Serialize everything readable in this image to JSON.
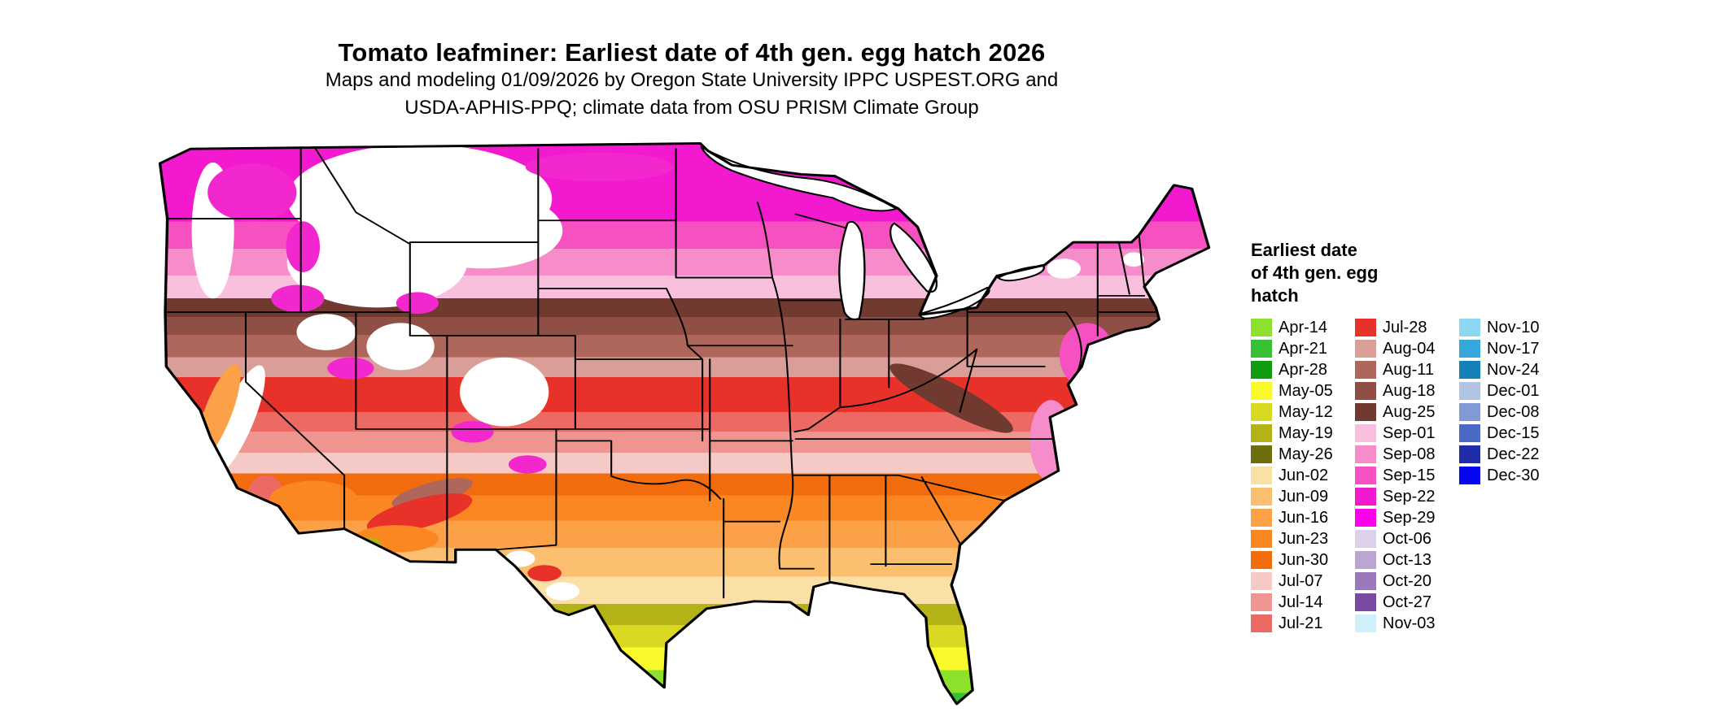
{
  "header": {
    "title": "Tomato leafminer: Earliest date of 4th gen. egg hatch 2026",
    "subtitle_line1": "Maps and modeling 01/09/2026 by Oregon State University IPPC USPEST.ORG and",
    "subtitle_line2": "USDA-APHIS-PPQ; climate data from OSU PRISM Climate Group"
  },
  "legend": {
    "title": "Earliest date\nof 4th gen. egg\nhatch",
    "columns": [
      [
        {
          "label": "Apr-14",
          "color": "#8DE12D"
        },
        {
          "label": "Apr-21",
          "color": "#35C133"
        },
        {
          "label": "Apr-28",
          "color": "#109C10"
        },
        {
          "label": "May-05",
          "color": "#F9F92B"
        },
        {
          "label": "May-12",
          "color": "#D9D921"
        },
        {
          "label": "May-19",
          "color": "#B3B318"
        },
        {
          "label": "May-26",
          "color": "#6E6E0C"
        },
        {
          "label": "Jun-02",
          "color": "#FADFA6"
        },
        {
          "label": "Jun-09",
          "color": "#FCBF70"
        },
        {
          "label": "Jun-16",
          "color": "#FDA148"
        },
        {
          "label": "Jun-23",
          "color": "#FB8723"
        },
        {
          "label": "Jun-30",
          "color": "#F26B0D"
        },
        {
          "label": "Jul-07",
          "color": "#F5C9C5"
        },
        {
          "label": "Jul-14",
          "color": "#EF9590"
        },
        {
          "label": "Jul-21",
          "color": "#EB6A64"
        }
      ],
      [
        {
          "label": "Jul-28",
          "color": "#E83229"
        },
        {
          "label": "Aug-04",
          "color": "#D99E97"
        },
        {
          "label": "Aug-11",
          "color": "#AF675C"
        },
        {
          "label": "Aug-18",
          "color": "#8F4F45"
        },
        {
          "label": "Aug-25",
          "color": "#703A30"
        },
        {
          "label": "Sep-01",
          "color": "#F8C0DD"
        },
        {
          "label": "Sep-08",
          "color": "#F78CCA"
        },
        {
          "label": "Sep-15",
          "color": "#F750C1"
        },
        {
          "label": "Sep-22",
          "color": "#F219CF"
        },
        {
          "label": "Sep-29",
          "color": "#FB00EC"
        },
        {
          "label": "Oct-06",
          "color": "#DCD1E9"
        },
        {
          "label": "Oct-13",
          "color": "#BCA5D2"
        },
        {
          "label": "Oct-20",
          "color": "#9B78BA"
        },
        {
          "label": "Oct-27",
          "color": "#7A4AA2"
        },
        {
          "label": "Nov-03",
          "color": "#CFEFFB"
        }
      ],
      [
        {
          "label": "Nov-10",
          "color": "#8ED7F3"
        },
        {
          "label": "Nov-17",
          "color": "#36A7DA"
        },
        {
          "label": "Nov-24",
          "color": "#1380B8"
        },
        {
          "label": "Dec-01",
          "color": "#B0C4E3"
        },
        {
          "label": "Dec-08",
          "color": "#7F9AD5"
        },
        {
          "label": "Dec-15",
          "color": "#4A68C6"
        },
        {
          "label": "Dec-22",
          "color": "#1F2DA8"
        },
        {
          "label": "Dec-30",
          "color": "#0505EE"
        }
      ]
    ]
  },
  "map": {
    "palette": {
      "white": "#FFFFFF",
      "magenta": "#F327CE",
      "hot_pink": "#F750C1",
      "pink": "#F78CCA",
      "red": "#E83229",
      "coral": "#EB6A64",
      "brown": "#AF675C",
      "dark_brown": "#703A30",
      "orange": "#FB8723",
      "light_orange": "#FDA148",
      "olive": "#B3B318"
    },
    "bands": [
      {
        "color": "#F219CF",
        "from": 0,
        "to": 0.141
      },
      {
        "color": "#F750C1",
        "from": 0.141,
        "to": 0.188
      },
      {
        "color": "#F78CCA",
        "from": 0.188,
        "to": 0.234
      },
      {
        "color": "#F8C0DD",
        "from": 0.234,
        "to": 0.273
      },
      {
        "color": "#703A30",
        "from": 0.273,
        "to": 0.305
      },
      {
        "color": "#8F4F45",
        "from": 0.305,
        "to": 0.336
      },
      {
        "color": "#AF675C",
        "from": 0.336,
        "to": 0.375
      },
      {
        "color": "#D99E97",
        "from": 0.375,
        "to": 0.409
      },
      {
        "color": "#E83229",
        "from": 0.409,
        "to": 0.469
      },
      {
        "color": "#EB6A64",
        "from": 0.469,
        "to": 0.503
      },
      {
        "color": "#EF9590",
        "from": 0.503,
        "to": 0.539
      },
      {
        "color": "#F5C9C5",
        "from": 0.539,
        "to": 0.575
      },
      {
        "color": "#F26B0D",
        "from": 0.575,
        "to": 0.613
      },
      {
        "color": "#FB8723",
        "from": 0.613,
        "to": 0.656
      },
      {
        "color": "#FDA148",
        "from": 0.656,
        "to": 0.703
      },
      {
        "color": "#FCBF70",
        "from": 0.703,
        "to": 0.753
      },
      {
        "color": "#FADFA6",
        "from": 0.753,
        "to": 0.8
      },
      {
        "color": "#B3B318",
        "from": 0.8,
        "to": 0.836
      },
      {
        "color": "#D9D921",
        "from": 0.836,
        "to": 0.875
      },
      {
        "color": "#F9F92B",
        "from": 0.875,
        "to": 0.914
      },
      {
        "color": "#8DE12D",
        "from": 0.914,
        "to": 0.953
      },
      {
        "color": "#35C133",
        "from": 0.953,
        "to": 1
      }
    ]
  }
}
